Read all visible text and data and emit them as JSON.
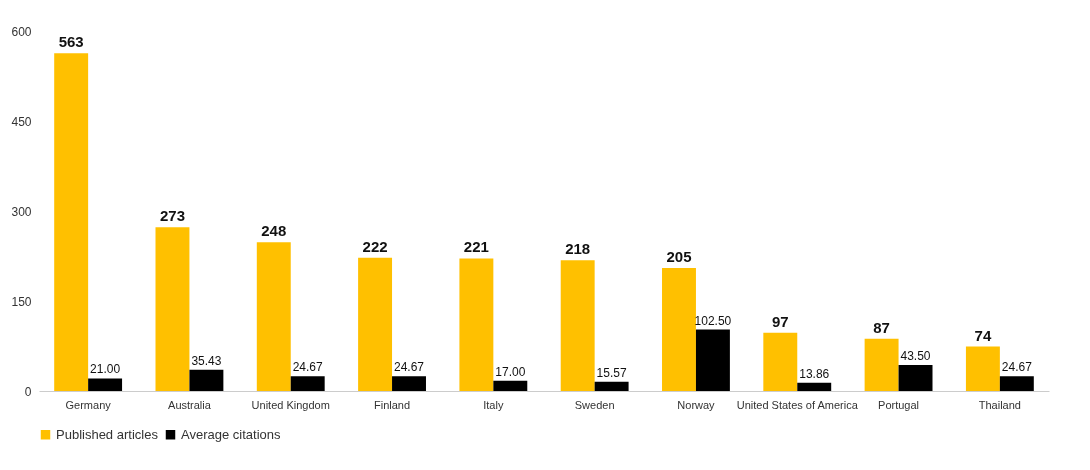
{
  "chart_data": {
    "type": "bar",
    "categories": [
      "Germany",
      "Australia",
      "United Kingdom",
      "Finland",
      "Italy",
      "Sweden",
      "Norway",
      "United States of America",
      "Portugal",
      "Thailand"
    ],
    "series": [
      {
        "name": "Published articles",
        "color": "#ffc000",
        "values": [
          563,
          273,
          248,
          222,
          221,
          218,
          205,
          97,
          87,
          74
        ],
        "value_labels": [
          "563",
          "273",
          "248",
          "222",
          "221",
          "218",
          "205",
          "97",
          "87",
          "74"
        ]
      },
      {
        "name": "Average citations",
        "color": "#000000",
        "values": [
          21.0,
          35.43,
          24.67,
          24.67,
          17.0,
          15.57,
          102.5,
          13.86,
          43.5,
          24.67
        ],
        "value_labels": [
          "21.00",
          "35.43",
          "24.67",
          "24.67",
          "17.00",
          "15.57",
          "102.50",
          "13.86",
          "43.50",
          "24.67"
        ]
      }
    ],
    "ylim": [
      0,
      600
    ],
    "yticks": [
      0,
      150,
      300,
      450,
      600
    ],
    "grid": false,
    "legend": "bottom"
  }
}
